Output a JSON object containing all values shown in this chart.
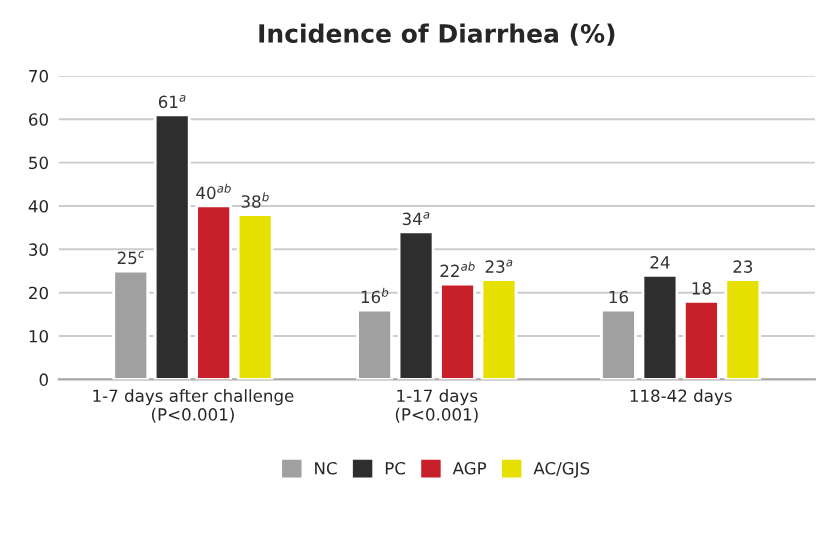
{
  "chart_data": {
    "type": "bar",
    "title": "Incidence of Diarrhea (%)",
    "categories": [
      "1-7 days after challenge\n(P<0.001)",
      "1-17 days\n(P<0.001)",
      "118-42 days"
    ],
    "series": [
      {
        "name": "NC",
        "color": "#a0a0a0",
        "values": [
          25,
          16,
          16
        ],
        "value_labels": [
          "25$^{c}$",
          "16$^{b}$",
          "16"
        ]
      },
      {
        "name": "PC",
        "color": "#2e2e2e",
        "values": [
          61,
          34,
          24
        ],
        "value_labels": [
          "61$^{a}$",
          "34$^{a}$",
          "24"
        ]
      },
      {
        "name": "AGP",
        "color": "#c8202a",
        "values": [
          40,
          22,
          18
        ],
        "value_labels": [
          "40$^{ab}$",
          "22$^{ab}$",
          "18"
        ]
      },
      {
        "name": "AC/GJS",
        "color": "#e6e000",
        "values": [
          38,
          23,
          23
        ],
        "value_labels": [
          "38$^{b}$",
          "23$^{a}$",
          "23"
        ]
      }
    ],
    "ylim": [
      0,
      70
    ],
    "yticks": [
      0,
      10,
      20,
      30,
      40,
      50,
      60,
      70
    ],
    "grid": "y",
    "legend": "bottom"
  }
}
